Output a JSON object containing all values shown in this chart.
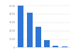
{
  "categories": [
    "1",
    "2",
    "3",
    "4",
    "5",
    "6"
  ],
  "values": [
    5000,
    4200,
    2500,
    900,
    200,
    150
  ],
  "bar_color": "#2e75d4",
  "background_color": "#ffffff",
  "ylim": [
    0,
    5500
  ],
  "grid_color": "#cccccc",
  "ytick_color": "#888888",
  "bar_width": 0.65
}
